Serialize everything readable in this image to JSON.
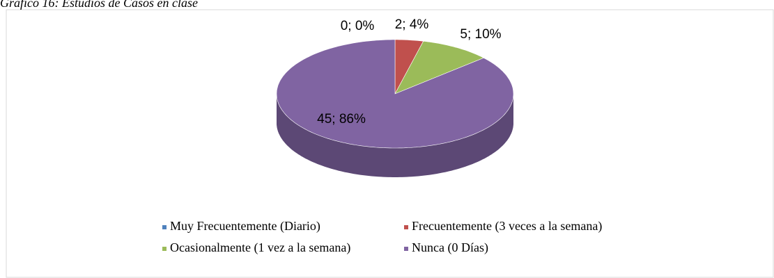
{
  "chart_data": {
    "type": "pie",
    "title": "Gráfico 16: Estudios de Casos en clase",
    "categories": [
      "Muy Frecuentemente (Diario)",
      "Frecuentemente (3 veces a la semana)",
      "Ocasionalmente (1 vez a la semana)",
      "Nunca (0 Días)"
    ],
    "values": [
      0,
      2,
      5,
      45
    ],
    "value_labels": [
      "0; 0%",
      "2; 4%",
      "5; 10%",
      "45; 86%"
    ],
    "colors": [
      "#4f81bd",
      "#c0504d",
      "#9bbb59",
      "#8064a2"
    ],
    "legend": "bottom"
  }
}
